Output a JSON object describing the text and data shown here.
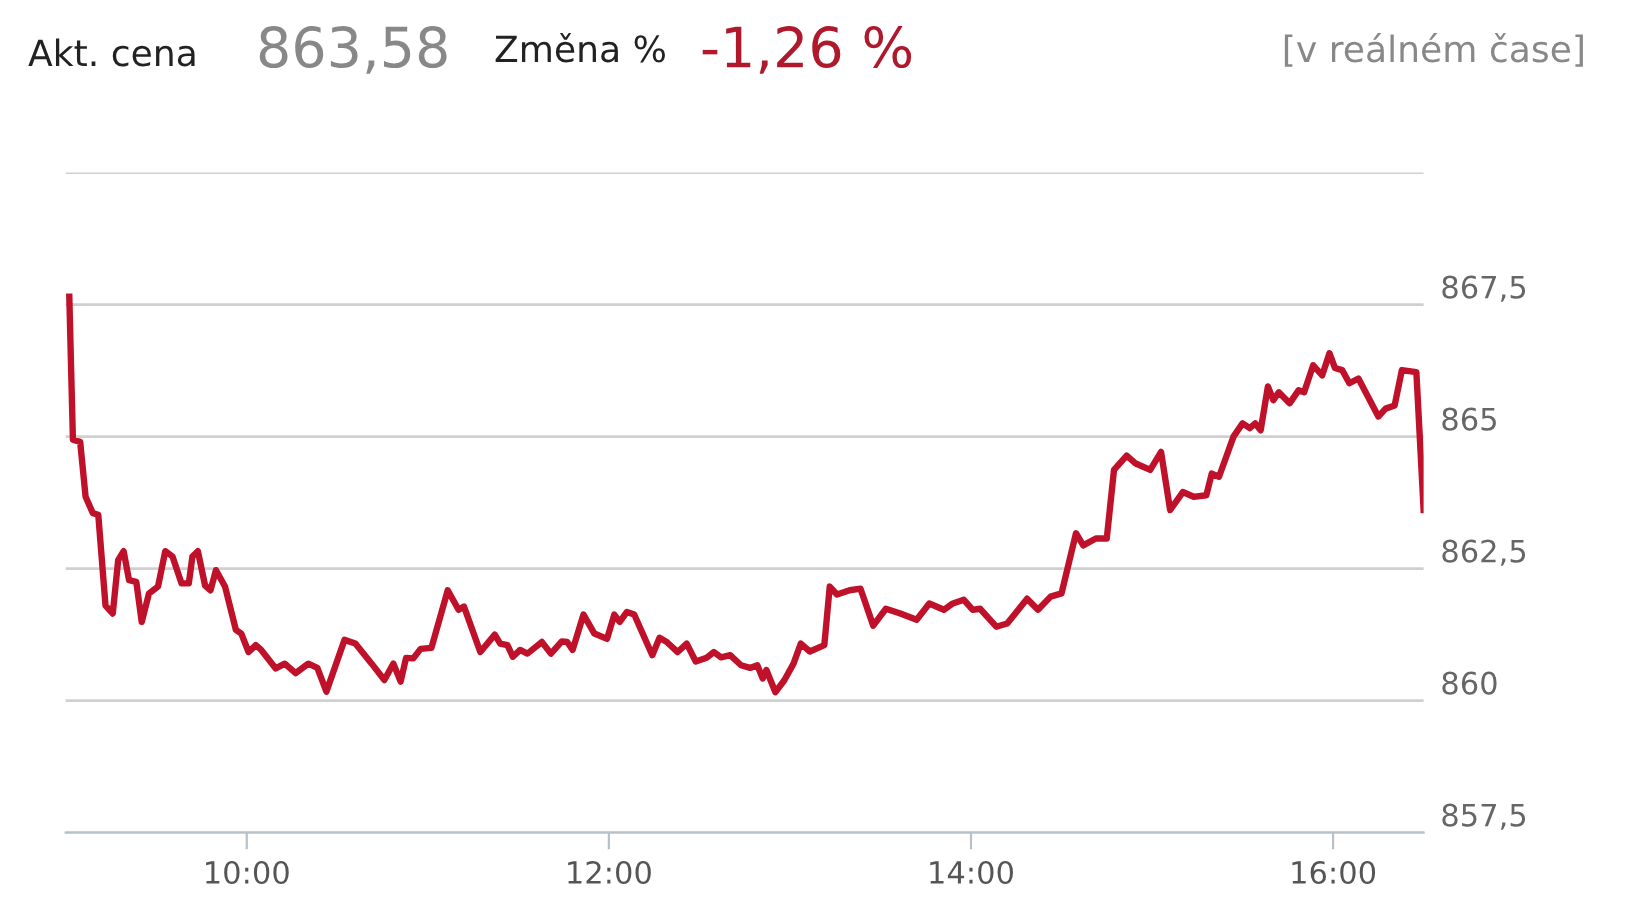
{
  "chart_data": {
    "type": "line",
    "title": "Akt. cena",
    "annotations": [
      "863,58",
      "Změna %",
      "-1,26 %",
      "[v reálném čase]"
    ],
    "x": [
      9.02,
      9.04,
      9.08,
      9.11,
      9.15,
      9.18,
      9.22,
      9.26,
      9.29,
      9.32,
      9.35,
      9.39,
      9.42,
      9.46,
      9.51,
      9.55,
      9.59,
      9.64,
      9.68,
      9.7,
      9.73,
      9.77,
      9.8,
      9.83,
      9.88,
      9.94,
      9.97,
      10.01,
      10.05,
      10.08,
      10.16,
      10.21,
      10.27,
      10.34,
      10.39,
      10.44,
      10.54,
      10.6,
      10.69,
      10.76,
      10.81,
      10.85,
      10.88,
      10.92,
      10.96,
      11.02,
      11.11,
      11.17,
      11.2,
      11.29,
      11.37,
      11.4,
      11.44,
      11.47,
      11.51,
      11.55,
      11.63,
      11.68,
      11.74,
      11.77,
      11.8,
      11.86,
      11.92,
      11.99,
      12.03,
      12.06,
      12.1,
      12.14,
      12.24,
      12.28,
      12.32,
      12.38,
      12.43,
      12.48,
      12.54,
      12.58,
      12.62,
      12.67,
      12.73,
      12.78,
      12.82,
      12.85,
      12.87,
      12.92,
      12.97,
      13.02,
      13.06,
      13.11,
      13.19,
      13.22,
      13.26,
      13.33,
      13.39,
      13.46,
      13.53,
      13.61,
      13.7,
      13.77,
      13.85,
      13.9,
      13.96,
      14.01,
      14.05,
      14.14,
      14.2,
      14.31,
      14.37,
      14.44,
      14.5,
      14.58,
      14.62,
      14.69,
      14.75,
      14.79,
      14.86,
      14.91,
      14.99,
      15.05,
      15.1,
      15.17,
      15.23,
      15.3,
      15.33,
      15.37,
      15.45,
      15.5,
      15.54,
      15.57,
      15.6,
      15.64,
      15.67,
      15.7,
      15.76,
      15.81,
      15.84,
      15.89,
      15.94,
      15.98,
      16.01,
      16.05,
      16.09,
      16.14,
      16.25,
      16.29,
      16.34,
      16.38,
      16.46,
      16.5
    ],
    "series": [
      {
        "color": "#c0112b",
        "values": [
          867.65,
          864.94,
          864.9,
          863.86,
          863.55,
          863.52,
          861.8,
          861.65,
          862.66,
          862.83,
          862.28,
          862.25,
          861.49,
          862.03,
          862.16,
          862.83,
          862.73,
          862.22,
          862.22,
          862.73,
          862.83,
          862.18,
          862.09,
          862.47,
          862.16,
          861.34,
          861.27,
          860.92,
          861.05,
          860.96,
          860.61,
          860.7,
          860.52,
          860.7,
          860.62,
          860.17,
          861.15,
          861.08,
          860.7,
          860.39,
          860.7,
          860.36,
          860.81,
          860.8,
          860.98,
          861.0,
          862.09,
          861.72,
          861.78,
          860.92,
          861.25,
          861.08,
          861.05,
          860.83,
          860.96,
          860.89,
          861.11,
          860.89,
          861.12,
          861.11,
          860.96,
          861.63,
          861.27,
          861.17,
          861.63,
          861.49,
          861.68,
          861.63,
          860.86,
          861.19,
          861.11,
          860.92,
          861.08,
          860.74,
          860.81,
          860.92,
          860.82,
          860.86,
          860.67,
          860.62,
          860.67,
          860.42,
          860.58,
          860.16,
          860.39,
          860.7,
          861.08,
          860.93,
          861.05,
          862.16,
          862.01,
          862.09,
          862.12,
          861.42,
          861.74,
          861.65,
          861.53,
          861.84,
          861.72,
          861.84,
          861.91,
          861.72,
          861.74,
          861.4,
          861.46,
          861.93,
          861.72,
          861.97,
          862.03,
          863.17,
          862.94,
          863.07,
          863.07,
          864.37,
          864.64,
          864.49,
          864.37,
          864.71,
          863.61,
          863.95,
          863.86,
          863.89,
          864.3,
          864.24,
          865.0,
          865.25,
          865.16,
          865.25,
          865.12,
          865.95,
          865.69,
          865.84,
          865.63,
          865.88,
          865.84,
          866.35,
          866.16,
          866.58,
          866.3,
          866.26,
          866.01,
          866.1,
          865.38,
          865.53,
          865.59,
          866.26,
          866.22,
          863.61
        ]
      }
    ],
    "xlim": [
      9.0,
      16.5
    ],
    "xticks": [
      {
        "value": 10,
        "label": "10:00"
      },
      {
        "value": 12,
        "label": "12:00"
      },
      {
        "value": 14,
        "label": "14:00"
      },
      {
        "value": 16,
        "label": "16:00"
      }
    ],
    "ylim": [
      857.5,
      870
    ],
    "yticks": [
      {
        "value": 857.5,
        "label": "857,5"
      },
      {
        "value": 860,
        "label": "860"
      },
      {
        "value": 862.5,
        "label": "862,5"
      },
      {
        "value": 865,
        "label": "865"
      },
      {
        "value": 867.5,
        "label": "867,5"
      },
      {
        "value": 870,
        "label": null
      }
    ],
    "grid": "y",
    "legend": false,
    "marker": "none",
    "line_style": "solid"
  }
}
